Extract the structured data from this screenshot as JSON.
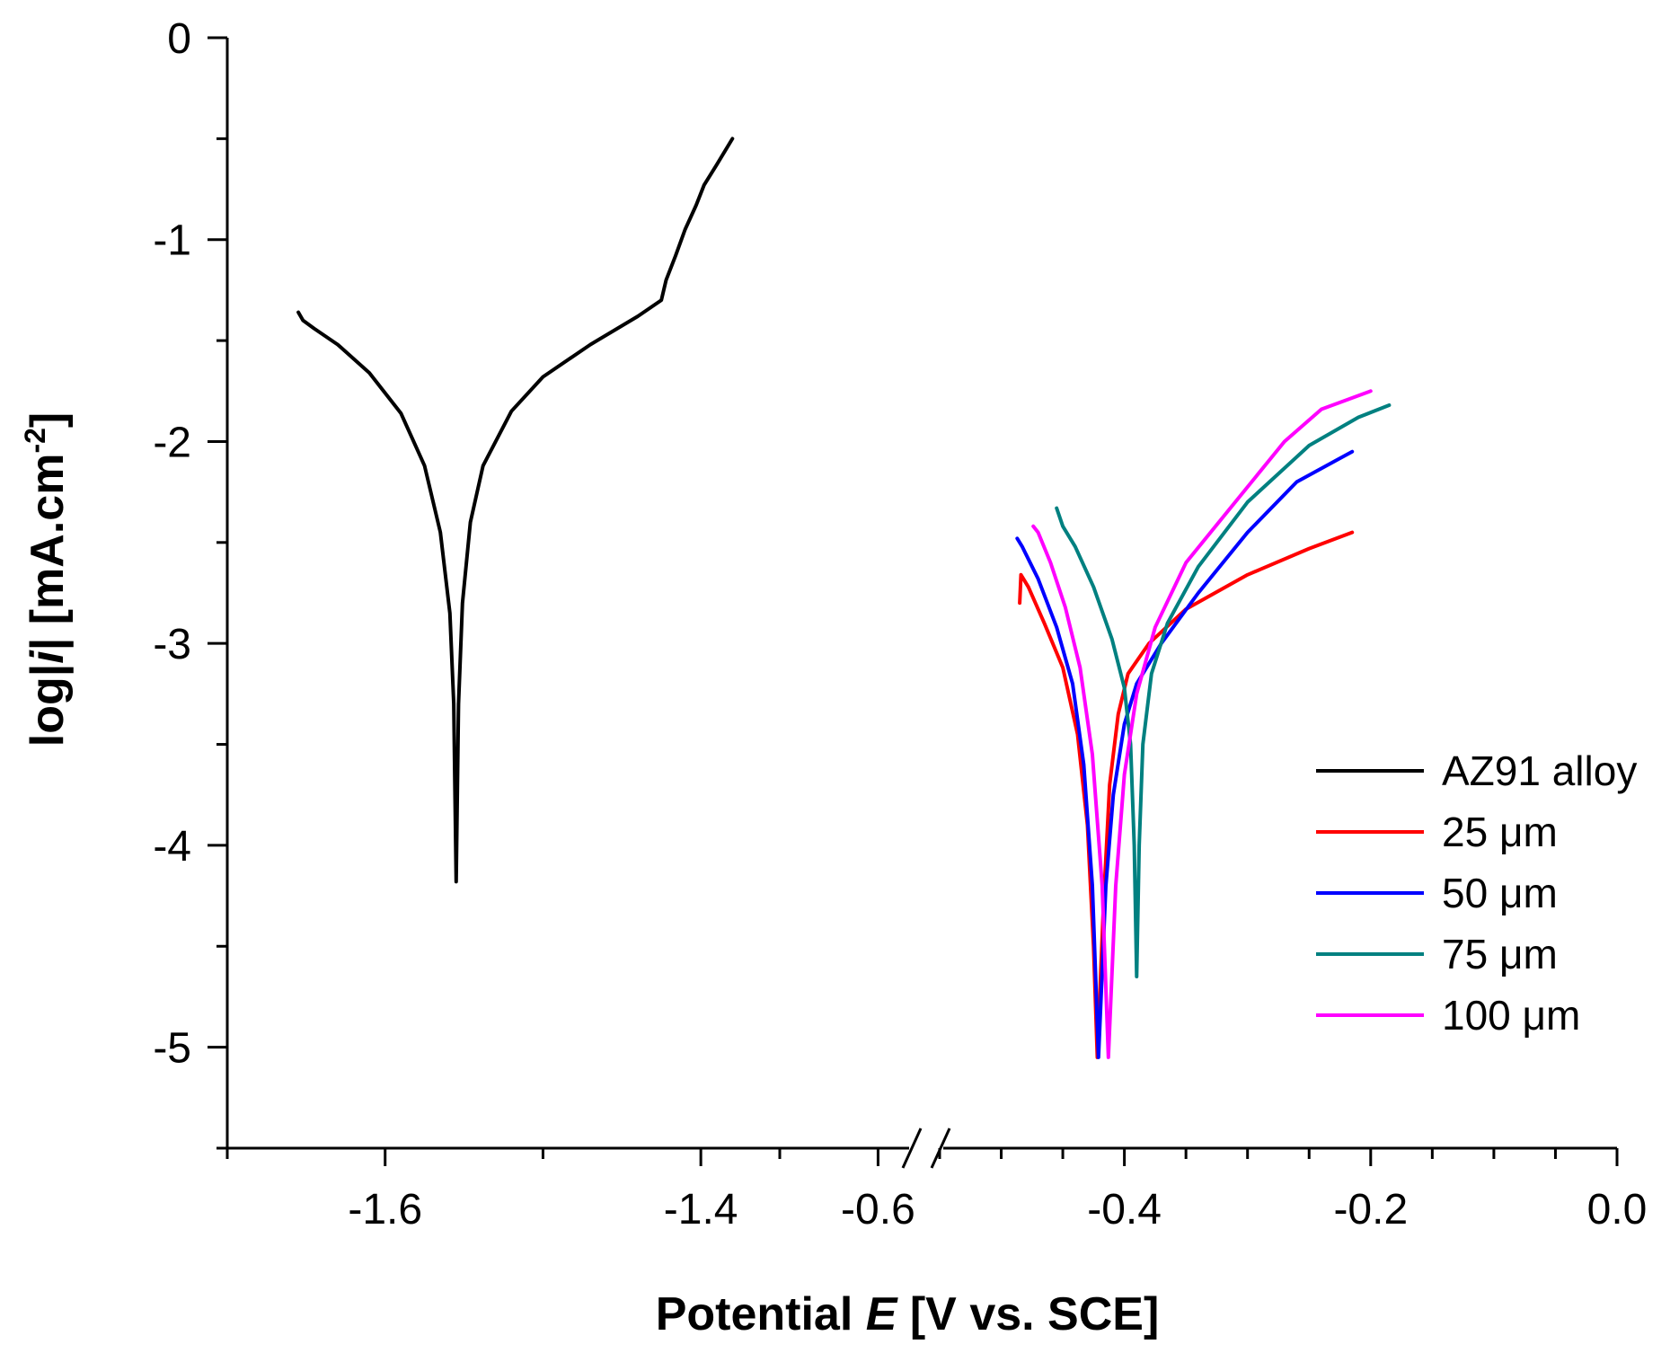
{
  "chart_data": {
    "type": "line",
    "title": "",
    "xlabel_prefix": "Potential ",
    "xlabel_var": "E",
    "xlabel_suffix": " [V vs. SCE]",
    "ylabel_prefix": "log|",
    "ylabel_var": "i",
    "ylabel_mid": "| [mA.cm",
    "ylabel_sup": "-2",
    "ylabel_end": "]",
    "ylim": [
      -5.5,
      0
    ],
    "y_major_ticks": [
      0,
      -1,
      -2,
      -3,
      -4,
      -5
    ],
    "y_tick_labels": [
      "0",
      "-1",
      "-2",
      "-3",
      "-4",
      "-5"
    ],
    "x_broken_axis": true,
    "x_segments": [
      {
        "range": [
          -1.7,
          -1.35
        ],
        "ticks": [
          -1.6,
          -1.4
        ],
        "tick_labels": [
          "-1.6",
          "-1.4"
        ]
      },
      {
        "range": [
          -0.62,
          0.0
        ],
        "ticks": [
          -0.6,
          -0.4,
          -0.2,
          0.0
        ],
        "tick_labels": [
          "-0.6",
          "-0.4",
          "-0.2",
          "0.0"
        ]
      }
    ],
    "legend_position": "center-right",
    "series": [
      {
        "name": "AZ91 alloy",
        "color": "#000000",
        "segment": 0,
        "points": [
          [
            -1.655,
            -1.36
          ],
          [
            -1.652,
            -1.4
          ],
          [
            -1.645,
            -1.44
          ],
          [
            -1.63,
            -1.52
          ],
          [
            -1.61,
            -1.66
          ],
          [
            -1.59,
            -1.86
          ],
          [
            -1.575,
            -2.12
          ],
          [
            -1.565,
            -2.45
          ],
          [
            -1.559,
            -2.85
          ],
          [
            -1.5565,
            -3.3
          ],
          [
            -1.555,
            -4.18
          ],
          [
            -1.5535,
            -3.3
          ],
          [
            -1.551,
            -2.8
          ],
          [
            -1.546,
            -2.4
          ],
          [
            -1.538,
            -2.12
          ],
          [
            -1.52,
            -1.85
          ],
          [
            -1.5,
            -1.68
          ],
          [
            -1.47,
            -1.52
          ],
          [
            -1.44,
            -1.38
          ],
          [
            -1.425,
            -1.3
          ],
          [
            -1.422,
            -1.2
          ],
          [
            -1.416,
            -1.08
          ],
          [
            -1.41,
            -0.95
          ],
          [
            -1.403,
            -0.83
          ],
          [
            -1.398,
            -0.73
          ],
          [
            -1.39,
            -0.63
          ],
          [
            -1.38,
            -0.5
          ]
        ]
      },
      {
        "name": "25 μm",
        "color": "#ff0000",
        "segment": 1,
        "points": [
          [
            -0.485,
            -2.8
          ],
          [
            -0.484,
            -2.66
          ],
          [
            -0.478,
            -2.72
          ],
          [
            -0.465,
            -2.9
          ],
          [
            -0.45,
            -3.12
          ],
          [
            -0.438,
            -3.45
          ],
          [
            -0.43,
            -3.9
          ],
          [
            -0.425,
            -4.5
          ],
          [
            -0.422,
            -5.05
          ],
          [
            -0.417,
            -4.3
          ],
          [
            -0.412,
            -3.7
          ],
          [
            -0.405,
            -3.35
          ],
          [
            -0.397,
            -3.15
          ],
          [
            -0.38,
            -3.0
          ],
          [
            -0.35,
            -2.83
          ],
          [
            -0.3,
            -2.66
          ],
          [
            -0.25,
            -2.53
          ],
          [
            -0.215,
            -2.45
          ]
        ]
      },
      {
        "name": "50 μm",
        "color": "#0000ff",
        "segment": 1,
        "points": [
          [
            -0.487,
            -2.48
          ],
          [
            -0.483,
            -2.52
          ],
          [
            -0.47,
            -2.68
          ],
          [
            -0.455,
            -2.92
          ],
          [
            -0.442,
            -3.2
          ],
          [
            -0.433,
            -3.6
          ],
          [
            -0.426,
            -4.2
          ],
          [
            -0.421,
            -5.05
          ],
          [
            -0.415,
            -4.2
          ],
          [
            -0.409,
            -3.75
          ],
          [
            -0.4,
            -3.4
          ],
          [
            -0.39,
            -3.2
          ],
          [
            -0.37,
            -3.0
          ],
          [
            -0.34,
            -2.75
          ],
          [
            -0.3,
            -2.45
          ],
          [
            -0.26,
            -2.2
          ],
          [
            -0.215,
            -2.05
          ]
        ]
      },
      {
        "name": "75 μm",
        "color": "#008080",
        "segment": 1,
        "points": [
          [
            -0.455,
            -2.33
          ],
          [
            -0.45,
            -2.42
          ],
          [
            -0.44,
            -2.52
          ],
          [
            -0.425,
            -2.72
          ],
          [
            -0.41,
            -2.98
          ],
          [
            -0.4,
            -3.22
          ],
          [
            -0.395,
            -3.5
          ],
          [
            -0.392,
            -4.0
          ],
          [
            -0.39,
            -4.65
          ],
          [
            -0.388,
            -4.0
          ],
          [
            -0.385,
            -3.5
          ],
          [
            -0.378,
            -3.15
          ],
          [
            -0.365,
            -2.9
          ],
          [
            -0.34,
            -2.62
          ],
          [
            -0.3,
            -2.3
          ],
          [
            -0.25,
            -2.02
          ],
          [
            -0.21,
            -1.88
          ],
          [
            -0.185,
            -1.82
          ]
        ]
      },
      {
        "name": "100 μm",
        "color": "#ff00ff",
        "segment": 1,
        "points": [
          [
            -0.474,
            -2.42
          ],
          [
            -0.47,
            -2.45
          ],
          [
            -0.46,
            -2.6
          ],
          [
            -0.448,
            -2.82
          ],
          [
            -0.436,
            -3.12
          ],
          [
            -0.426,
            -3.55
          ],
          [
            -0.418,
            -4.2
          ],
          [
            -0.413,
            -5.05
          ],
          [
            -0.407,
            -4.2
          ],
          [
            -0.4,
            -3.65
          ],
          [
            -0.39,
            -3.25
          ],
          [
            -0.375,
            -2.92
          ],
          [
            -0.35,
            -2.6
          ],
          [
            -0.31,
            -2.3
          ],
          [
            -0.27,
            -2.0
          ],
          [
            -0.24,
            -1.84
          ],
          [
            -0.2,
            -1.75
          ]
        ]
      }
    ]
  }
}
